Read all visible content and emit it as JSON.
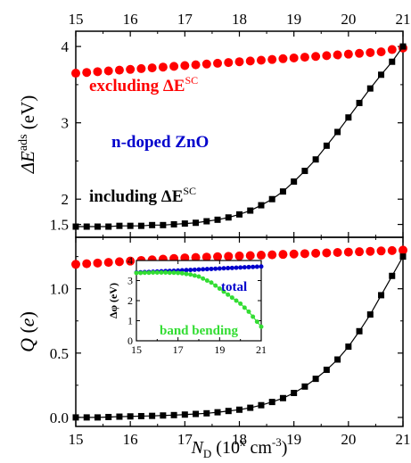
{
  "chart_data": [
    {
      "id": "top",
      "type": "scatter",
      "ylabel_main": "ΔE",
      "ylabel_sup": "ads",
      "ylabel_unit": " (eV)",
      "xlim": [
        15,
        21
      ],
      "ylim": [
        1.5,
        4.2
      ],
      "x_ticks": [
        15,
        16,
        17,
        18,
        19,
        20,
        21
      ],
      "y_ticks": [
        2,
        3,
        4
      ],
      "series": [
        {
          "key": "excluding",
          "color": "#ff0000",
          "marker": "circle",
          "x": [
            15,
            15.2,
            15.4,
            15.6,
            15.8,
            16,
            16.2,
            16.4,
            16.6,
            16.8,
            17,
            17.2,
            17.4,
            17.6,
            17.8,
            18,
            18.2,
            18.4,
            18.6,
            18.8,
            19,
            19.2,
            19.4,
            19.6,
            19.8,
            20,
            20.2,
            20.4,
            20.6,
            20.8,
            21
          ],
          "y": [
            3.65,
            3.66,
            3.67,
            3.68,
            3.69,
            3.7,
            3.71,
            3.72,
            3.73,
            3.74,
            3.75,
            3.76,
            3.77,
            3.78,
            3.79,
            3.8,
            3.81,
            3.82,
            3.83,
            3.84,
            3.85,
            3.86,
            3.87,
            3.88,
            3.89,
            3.9,
            3.91,
            3.92,
            3.93,
            3.96,
            3.98
          ]
        },
        {
          "key": "including",
          "color": "#000000",
          "marker": "square",
          "line": true,
          "x": [
            15,
            15.2,
            15.4,
            15.6,
            15.8,
            16,
            16.2,
            16.4,
            16.6,
            16.8,
            17,
            17.2,
            17.4,
            17.6,
            17.8,
            18,
            18.2,
            18.4,
            18.6,
            18.8,
            19,
            19.2,
            19.4,
            19.6,
            19.8,
            20,
            20.2,
            20.4,
            20.6,
            20.8,
            21
          ],
          "y": [
            1.64,
            1.64,
            1.64,
            1.64,
            1.65,
            1.65,
            1.65,
            1.66,
            1.66,
            1.67,
            1.68,
            1.69,
            1.71,
            1.73,
            1.76,
            1.8,
            1.85,
            1.92,
            2.0,
            2.1,
            2.23,
            2.37,
            2.52,
            2.7,
            2.88,
            3.07,
            3.26,
            3.45,
            3.63,
            3.8,
            4.0
          ]
        }
      ],
      "annotations": [
        {
          "key": "ann_excluding",
          "text": "excluding ΔE",
          "sup": "SC",
          "color": "#ff0000"
        },
        {
          "key": "ann_ndoped",
          "text": "n-doped ZnO",
          "color": "#0000cc"
        },
        {
          "key": "ann_including",
          "text": "including ΔE",
          "sup": "SC",
          "color": "#000000"
        }
      ]
    },
    {
      "id": "bottom",
      "type": "scatter",
      "ylabel_main": "Q",
      "ylabel_unit": " (e)",
      "xlabel_main": "N",
      "xlabel_sub": "D",
      "xlabel_unit": " (10",
      "xlabel_unit_sup": "x",
      "xlabel_unit_rest": " cm",
      "xlabel_unit_sup2": "-3",
      "xlabel_close": ")",
      "xlim": [
        15,
        21
      ],
      "ylim": [
        -0.07,
        1.4
      ],
      "x_ticks": [
        15,
        16,
        17,
        18,
        19,
        20,
        21
      ],
      "y_ticks": [
        0.0,
        0.5,
        1.0,
        1.5
      ],
      "y_tick_labels": [
        "0.0",
        "0.5",
        "1.0",
        "1.5"
      ],
      "series": [
        {
          "key": "excluding",
          "color": "#ff0000",
          "marker": "circle",
          "x": [
            15,
            15.2,
            15.4,
            15.6,
            15.8,
            16,
            16.2,
            16.4,
            16.6,
            16.8,
            17,
            17.2,
            17.4,
            17.6,
            17.8,
            18,
            18.2,
            18.4,
            18.6,
            18.8,
            19,
            19.2,
            19.4,
            19.6,
            19.8,
            20,
            20.2,
            20.4,
            20.6,
            20.8,
            21
          ],
          "y": [
            1.19,
            1.195,
            1.2,
            1.205,
            1.21,
            1.215,
            1.22,
            1.225,
            1.23,
            1.235,
            1.24,
            1.243,
            1.246,
            1.249,
            1.252,
            1.255,
            1.258,
            1.261,
            1.264,
            1.267,
            1.27,
            1.273,
            1.276,
            1.279,
            1.282,
            1.285,
            1.288,
            1.291,
            1.294,
            1.297,
            1.3
          ]
        },
        {
          "key": "including",
          "color": "#000000",
          "marker": "square",
          "line": true,
          "x": [
            15,
            15.2,
            15.4,
            15.6,
            15.8,
            16,
            16.2,
            16.4,
            16.6,
            16.8,
            17,
            17.2,
            17.4,
            17.6,
            17.8,
            18,
            18.2,
            18.4,
            18.6,
            18.8,
            19,
            19.2,
            19.4,
            19.6,
            19.8,
            20,
            20.2,
            20.4,
            20.6,
            20.8,
            21
          ],
          "y": [
            0.0,
            0.0,
            0.0,
            0.003,
            0.006,
            0.008,
            0.01,
            0.012,
            0.015,
            0.018,
            0.022,
            0.027,
            0.032,
            0.04,
            0.05,
            0.06,
            0.075,
            0.095,
            0.12,
            0.15,
            0.19,
            0.24,
            0.3,
            0.37,
            0.45,
            0.55,
            0.67,
            0.8,
            0.95,
            1.1,
            1.25
          ]
        }
      ],
      "inset": {
        "ylabel": "Δφ (eV)",
        "xlim": [
          15,
          21
        ],
        "ylim": [
          0,
          4
        ],
        "x_ticks": [
          15,
          17,
          19,
          21
        ],
        "y_ticks": [
          0,
          1,
          2,
          3,
          4
        ],
        "series": [
          {
            "key": "total",
            "name": "total",
            "color": "#0000cc",
            "marker": "circle",
            "x": [
              15,
              15.2,
              15.4,
              15.6,
              15.8,
              16,
              16.2,
              16.4,
              16.6,
              16.8,
              17,
              17.2,
              17.4,
              17.6,
              17.8,
              18,
              18.2,
              18.4,
              18.6,
              18.8,
              19,
              19.2,
              19.4,
              19.6,
              19.8,
              20,
              20.2,
              20.4,
              20.6,
              20.8,
              21
            ],
            "y": [
              3.4,
              3.41,
              3.42,
              3.43,
              3.44,
              3.45,
              3.46,
              3.47,
              3.48,
              3.49,
              3.5,
              3.51,
              3.52,
              3.53,
              3.54,
              3.55,
              3.56,
              3.57,
              3.58,
              3.59,
              3.6,
              3.61,
              3.62,
              3.63,
              3.64,
              3.65,
              3.66,
              3.67,
              3.68,
              3.69,
              3.7
            ]
          },
          {
            "key": "band_bending",
            "name": "band bending",
            "color": "#33dd33",
            "marker": "circle",
            "line": true,
            "x": [
              15,
              15.2,
              15.4,
              15.6,
              15.8,
              16,
              16.2,
              16.4,
              16.6,
              16.8,
              17,
              17.2,
              17.4,
              17.6,
              17.8,
              18,
              18.2,
              18.4,
              18.6,
              18.8,
              19,
              19.2,
              19.4,
              19.6,
              19.8,
              20,
              20.2,
              20.4,
              20.6,
              20.8,
              21
            ],
            "y": [
              3.38,
              3.38,
              3.39,
              3.39,
              3.4,
              3.4,
              3.4,
              3.4,
              3.39,
              3.39,
              3.38,
              3.36,
              3.33,
              3.3,
              3.25,
              3.2,
              3.1,
              3.0,
              2.9,
              2.75,
              2.6,
              2.45,
              2.3,
              2.15,
              2.0,
              1.85,
              1.65,
              1.45,
              1.2,
              0.95,
              0.7
            ]
          }
        ]
      }
    }
  ]
}
